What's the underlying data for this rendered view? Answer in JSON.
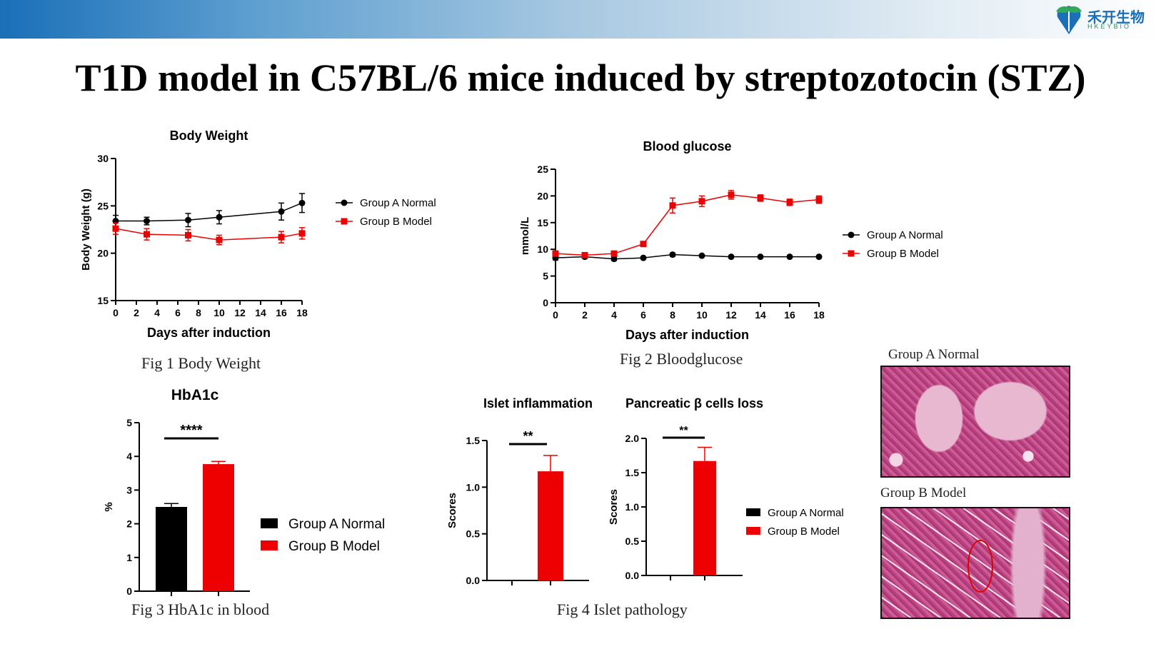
{
  "brand": {
    "name": "禾开生物",
    "sub": "HKEYBIO"
  },
  "title": "T1D model in C57BL/6 mice induced by streptozotocin (STZ)",
  "colors": {
    "groupA": "#000000",
    "groupB": "#ee0000",
    "accent": "#1a6fb8"
  },
  "captions": {
    "fig1": "Fig 1 Body Weight",
    "fig2": "Fig 2 Bloodglucose",
    "fig3": "Fig 3 HbA1c in blood",
    "fig4": "Fig 4 Islet pathology"
  },
  "histology": {
    "groupA_label": "Group A Normal",
    "groupB_label": "Group B Model"
  },
  "chart_data": [
    {
      "id": "body-weight",
      "type": "line",
      "title": "Body Weight",
      "xlabel": "Days after induction",
      "ylabel": "Body Weight (g)",
      "xlim": [
        0,
        18
      ],
      "ylim": [
        15,
        30
      ],
      "xticks": [
        0,
        2,
        4,
        6,
        8,
        10,
        12,
        14,
        16,
        18
      ],
      "yticks": [
        15,
        20,
        25,
        30
      ],
      "legend": "right",
      "series": [
        {
          "name": "Group A Normal",
          "color": "#000000",
          "marker": "circle",
          "x": [
            0,
            3,
            7,
            10,
            16,
            18
          ],
          "y": [
            23.4,
            23.4,
            23.5,
            23.8,
            24.4,
            25.3
          ],
          "err": [
            0.6,
            0.4,
            0.7,
            0.7,
            0.9,
            1.0
          ]
        },
        {
          "name": "Group B Model",
          "color": "#ee0000",
          "marker": "square",
          "x": [
            0,
            3,
            7,
            10,
            16,
            18
          ],
          "y": [
            22.6,
            22.0,
            21.9,
            21.4,
            21.7,
            22.1
          ],
          "err": [
            0.6,
            0.6,
            0.6,
            0.5,
            0.6,
            0.6
          ]
        }
      ]
    },
    {
      "id": "blood-glucose",
      "type": "line",
      "title": "Blood glucose",
      "xlabel": "Days after induction",
      "ylabel": "mmol/L",
      "xlim": [
        0,
        18
      ],
      "ylim": [
        0,
        25
      ],
      "xticks": [
        0,
        2,
        4,
        6,
        8,
        10,
        12,
        14,
        16,
        18
      ],
      "yticks": [
        0,
        5,
        10,
        15,
        20,
        25
      ],
      "legend": "right",
      "series": [
        {
          "name": "Group A Normal",
          "color": "#000000",
          "marker": "circle",
          "x": [
            0,
            2,
            4,
            6,
            8,
            10,
            12,
            14,
            16,
            18
          ],
          "y": [
            8.4,
            8.6,
            8.2,
            8.4,
            9.0,
            8.8,
            8.6,
            8.6,
            8.6,
            8.6
          ],
          "err": [
            0.4,
            0.3,
            0.3,
            0.2,
            0.3,
            0.2,
            0.2,
            0.2,
            0.2,
            0.2
          ]
        },
        {
          "name": "Group B Model",
          "color": "#ee0000",
          "marker": "square",
          "x": [
            0,
            2,
            4,
            6,
            8,
            10,
            12,
            14,
            16,
            18
          ],
          "y": [
            9.2,
            8.9,
            9.2,
            11.0,
            18.2,
            19.0,
            20.2,
            19.6,
            18.8,
            19.3
          ],
          "err": [
            0.4,
            0.3,
            0.3,
            0.4,
            1.4,
            1.0,
            0.8,
            0.6,
            0.6,
            0.7
          ]
        }
      ]
    },
    {
      "id": "hba1c",
      "type": "bar",
      "title": "HbA1c",
      "xlabel": "",
      "ylabel": "%",
      "ylim": [
        0,
        5
      ],
      "yticks": [
        0,
        1,
        2,
        3,
        4,
        5
      ],
      "categories": [
        "Group A Normal",
        "Group B Model"
      ],
      "values": [
        2.5,
        3.77
      ],
      "err": [
        0.1,
        0.08
      ],
      "colors": [
        "#000000",
        "#ee0000"
      ],
      "significance": "****",
      "legend": "right"
    },
    {
      "id": "islet-inflammation",
      "type": "bar",
      "title": "Islet inflammation",
      "xlabel": "",
      "ylabel": "Scores",
      "ylim": [
        0,
        1.5
      ],
      "yticks": [
        0.0,
        0.5,
        1.0,
        1.5
      ],
      "categories": [
        "Group A Normal",
        "Group B Model"
      ],
      "values": [
        0.0,
        1.17
      ],
      "err": [
        0.0,
        0.17
      ],
      "colors": [
        "#000000",
        "#ee0000"
      ],
      "significance": "**"
    },
    {
      "id": "beta-cell-loss",
      "type": "bar",
      "title": "Pancreatic β cells loss",
      "xlabel": "",
      "ylabel": "Scores",
      "ylim": [
        0,
        2.0
      ],
      "yticks": [
        0.0,
        0.5,
        1.0,
        1.5,
        2.0
      ],
      "categories": [
        "Group A Normal",
        "Group B Model"
      ],
      "values": [
        0.0,
        1.67
      ],
      "err": [
        0.0,
        0.2
      ],
      "colors": [
        "#000000",
        "#ee0000"
      ],
      "significance": "**",
      "legend": "right"
    }
  ]
}
